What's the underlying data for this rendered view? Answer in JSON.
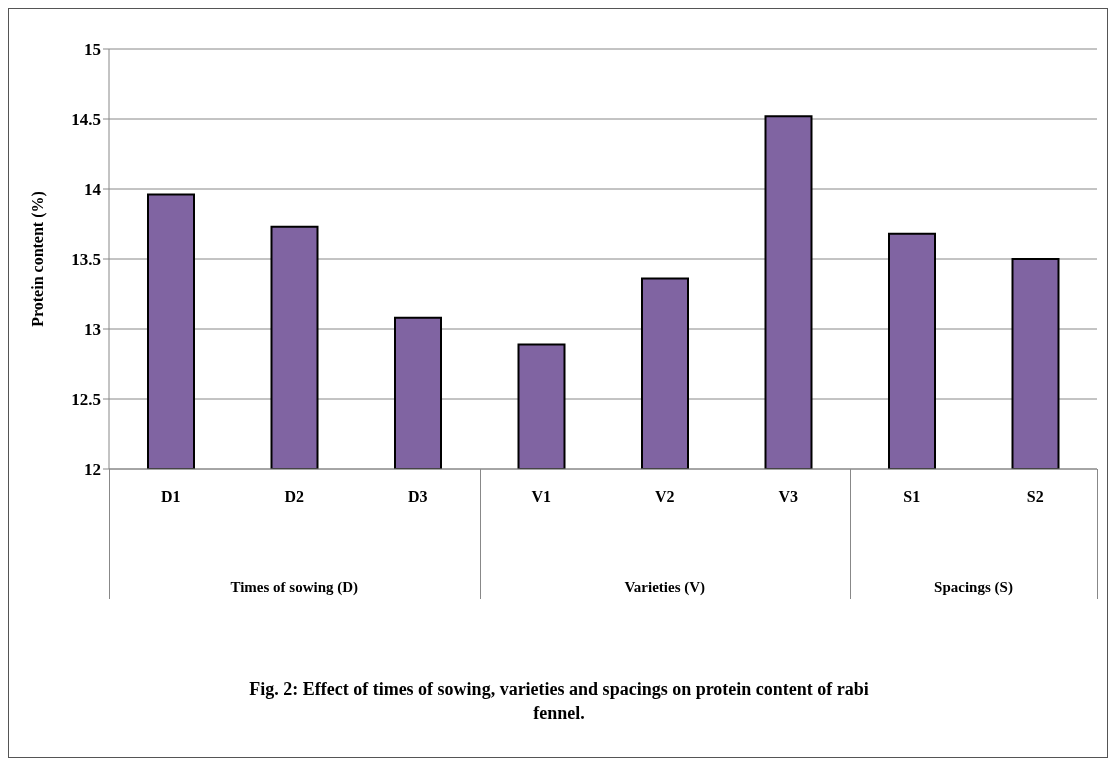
{
  "chart_data": {
    "type": "bar",
    "title": "Fig. 2: Effect of times of sowing, varieties and spacings on protein content of rabi fennel.",
    "ylabel": "Protein content (%)",
    "categories": [
      "D1",
      "D2",
      "D3",
      "V1",
      "V2",
      "V3",
      "S1",
      "S2"
    ],
    "values": [
      13.96,
      13.73,
      13.08,
      12.89,
      13.36,
      14.52,
      13.68,
      13.5
    ],
    "color": "#8064a2",
    "ylim": [
      12,
      15
    ],
    "yticks": [
      12,
      12.5,
      13,
      13.5,
      14,
      14.5,
      15
    ],
    "grid": "y",
    "annotations": [
      "Times of sowing (D)",
      "Varieties (V)",
      "Spacings (S)"
    ]
  }
}
